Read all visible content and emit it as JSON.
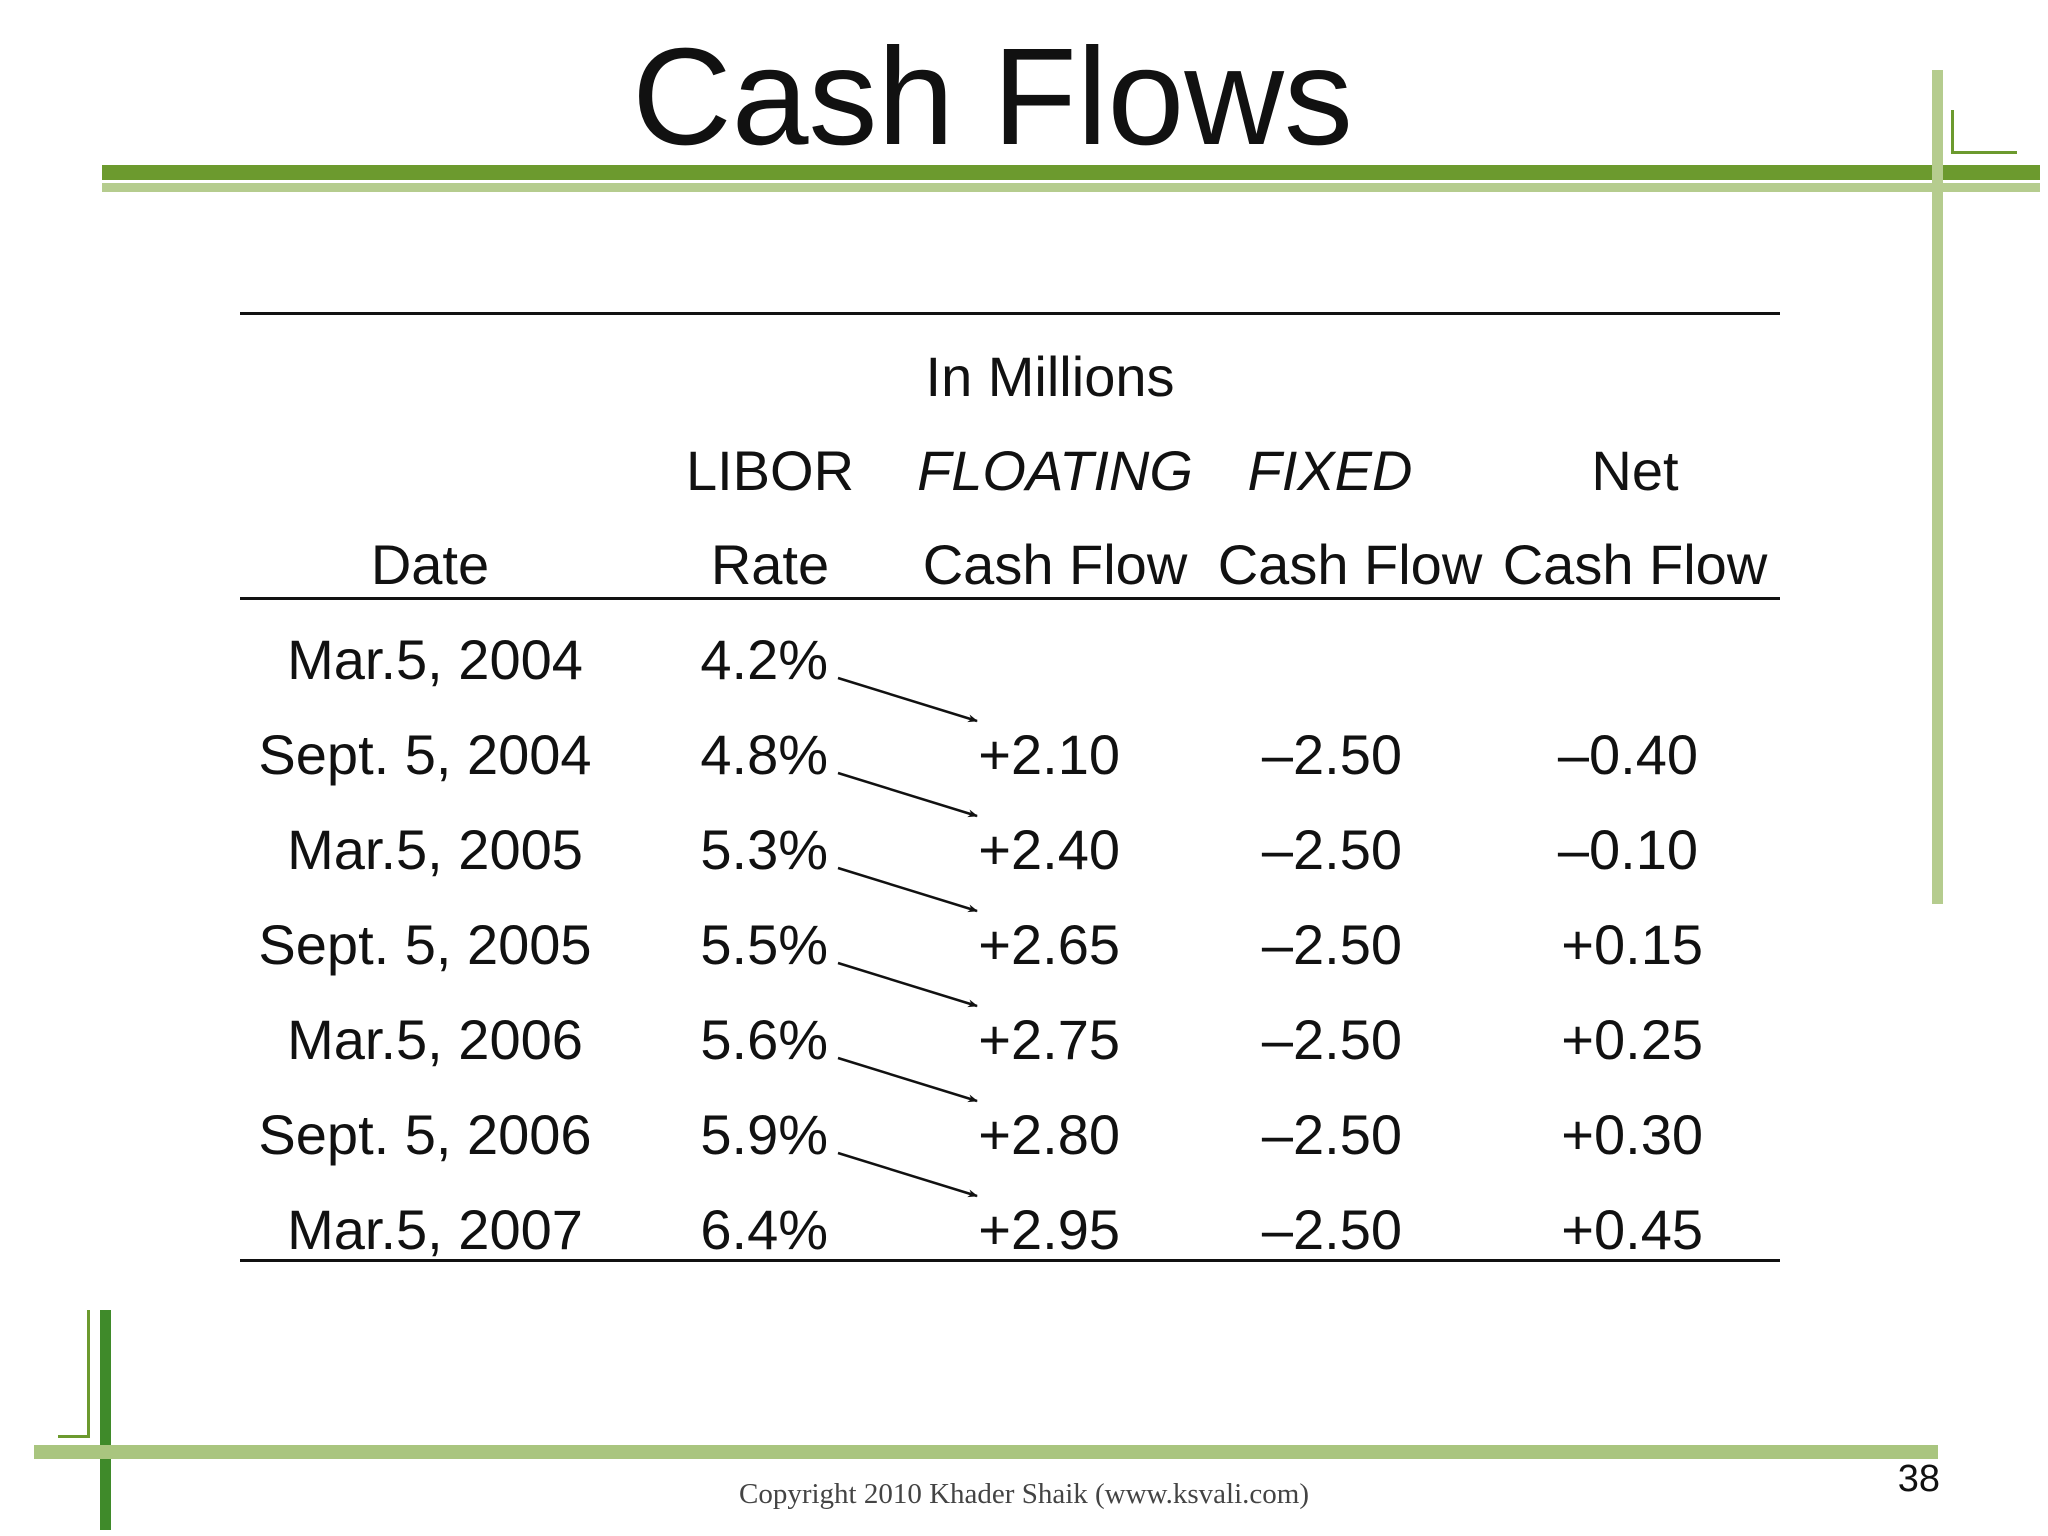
{
  "slide": {
    "title": "Cash Flows",
    "page_number": "38",
    "copyright": "Copyright 2010 Khader Shaik (www.ksvali.com)",
    "accent_dark": "#6c9a2e",
    "accent_light": "#b5cc8e"
  },
  "table": {
    "unit_label": "In Millions",
    "headers": {
      "date": [
        "",
        "Date"
      ],
      "rate": [
        "LIBOR",
        "Rate"
      ],
      "floating": [
        "FLOATING",
        "Cash Flow"
      ],
      "fixed": [
        "FIXED",
        "Cash Flow"
      ],
      "net": [
        "Net",
        "Cash Flow"
      ]
    },
    "rows": [
      {
        "date": "Mar.5, 2004",
        "rate": "4.2%",
        "floating": "",
        "fixed": "",
        "net": ""
      },
      {
        "date": "Sept. 5, 2004",
        "rate": "4.8%",
        "floating": "+2.10",
        "fixed": "–2.50",
        "net": "–0.40"
      },
      {
        "date": "Mar.5, 2005",
        "rate": "5.3%",
        "floating": "+2.40",
        "fixed": "–2.50",
        "net": "–0.10"
      },
      {
        "date": "Sept. 5, 2005",
        "rate": "5.5%",
        "floating": "+2.65",
        "fixed": "–2.50",
        "net": "+0.15"
      },
      {
        "date": "Mar.5, 2006",
        "rate": "5.6%",
        "floating": "+2.75",
        "fixed": "–2.50",
        "net": "+0.25"
      },
      {
        "date": "Sept. 5, 2006",
        "rate": "5.9%",
        "floating": "+2.80",
        "fixed": "–2.50",
        "net": "+0.30"
      },
      {
        "date": "Mar.5, 2007",
        "rate": "6.4%",
        "floating": "+2.95",
        "fixed": "–2.50",
        "net": "+0.45"
      }
    ]
  }
}
